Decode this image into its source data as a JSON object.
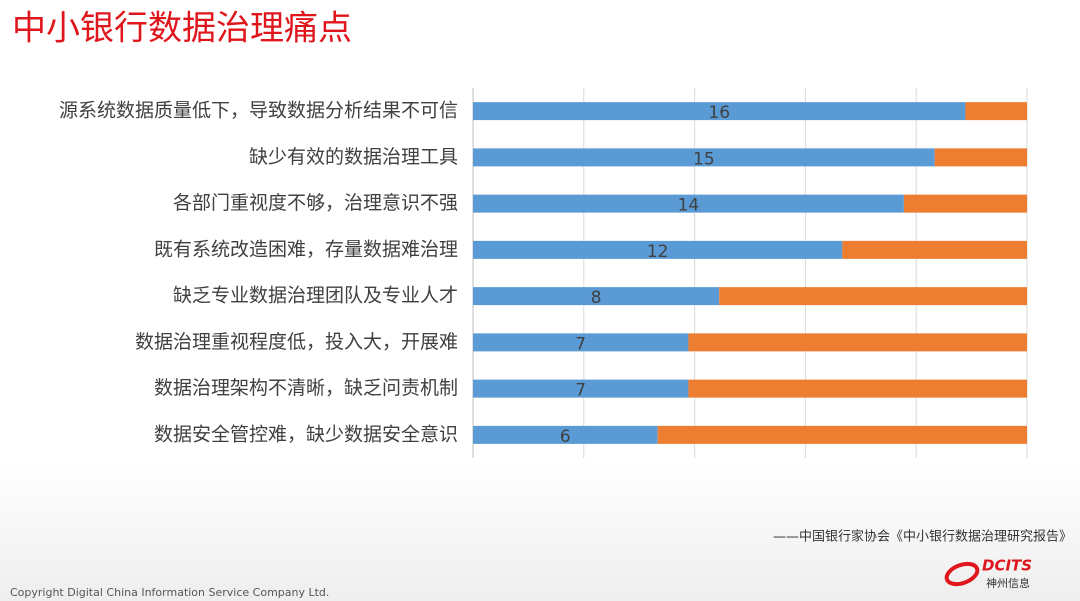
{
  "chart_data": {
    "type": "stacked-barh",
    "title": "中小银行数据治理痛点",
    "categories": [
      "源系统数据质量低下，导致数据分析结果不可信",
      "缺少有效的数据治理工具",
      "各部门重视度不够，治理意识不强",
      "既有系统改造困难，存量数据难治理",
      "缺乏专业数据治理团队及专业人才",
      "数据治理重视程度低，投入大，开展难",
      "数据治理架构不清晰，缺乏问责机制",
      "数据安全管控难，缺少数据安全意识"
    ],
    "series": [
      {
        "color": "#5b9bd5",
        "values": [
          16,
          15,
          14,
          12,
          8,
          7,
          7,
          6
        ],
        "show_labels": true
      },
      {
        "color": "#ed7d31",
        "values": [
          2,
          3,
          4,
          6,
          10,
          11,
          11,
          12
        ],
        "show_labels": false
      }
    ],
    "xlim": [
      0,
      18
    ],
    "xticks": [
      0,
      3.6,
      7.2,
      10.8,
      14.4,
      18
    ],
    "grid": true
  },
  "source": "——中国银行家协会《中小银行数据治理研究报告》",
  "copyright": "Copyright  Digital China Information Service Company Ltd.",
  "logo": {
    "brand": "DCITS",
    "name": "神州信息"
  }
}
